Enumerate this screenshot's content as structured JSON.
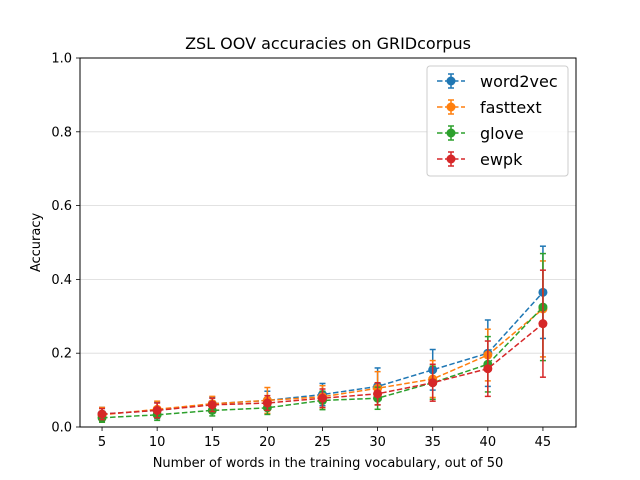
{
  "chart_data": {
    "type": "line",
    "title": "ZSL OOV accuracies on GRIDcorpus",
    "xlabel": "Number of words in the training vocabulary, out of 50",
    "ylabel": "Accuracy",
    "x": [
      5,
      10,
      15,
      20,
      25,
      30,
      35,
      40,
      45
    ],
    "xlim": [
      3,
      48
    ],
    "ylim": [
      0,
      1.0
    ],
    "yticks": [
      0.0,
      0.2,
      0.4,
      0.6,
      0.8,
      1.0
    ],
    "ytick_labels": [
      "0.0",
      "0.2",
      "0.4",
      "0.6",
      "0.8",
      "1.0"
    ],
    "grid": "horizontal",
    "legend_position": "top-right",
    "series": [
      {
        "name": "word2vec",
        "color": "#1f77b4",
        "values": [
          0.035,
          0.045,
          0.063,
          0.072,
          0.088,
          0.11,
          0.155,
          0.2,
          0.365
        ],
        "errors": [
          0.018,
          0.022,
          0.018,
          0.025,
          0.03,
          0.05,
          0.055,
          0.09,
          0.125
        ]
      },
      {
        "name": "fasttext",
        "color": "#ff7f0e",
        "values": [
          0.033,
          0.048,
          0.063,
          0.072,
          0.082,
          0.105,
          0.13,
          0.195,
          0.32
        ],
        "errors": [
          0.02,
          0.022,
          0.02,
          0.035,
          0.03,
          0.045,
          0.05,
          0.07,
          0.13
        ]
      },
      {
        "name": "glove",
        "color": "#2ca02c",
        "values": [
          0.025,
          0.033,
          0.045,
          0.052,
          0.072,
          0.078,
          0.12,
          0.17,
          0.325
        ],
        "errors": [
          0.012,
          0.015,
          0.015,
          0.018,
          0.025,
          0.03,
          0.045,
          0.075,
          0.145
        ]
      },
      {
        "name": "ewpk",
        "color": "#d62728",
        "values": [
          0.035,
          0.045,
          0.06,
          0.065,
          0.078,
          0.09,
          0.12,
          0.158,
          0.28
        ],
        "errors": [
          0.015,
          0.02,
          0.018,
          0.02,
          0.025,
          0.03,
          0.05,
          0.075,
          0.145
        ]
      }
    ]
  }
}
